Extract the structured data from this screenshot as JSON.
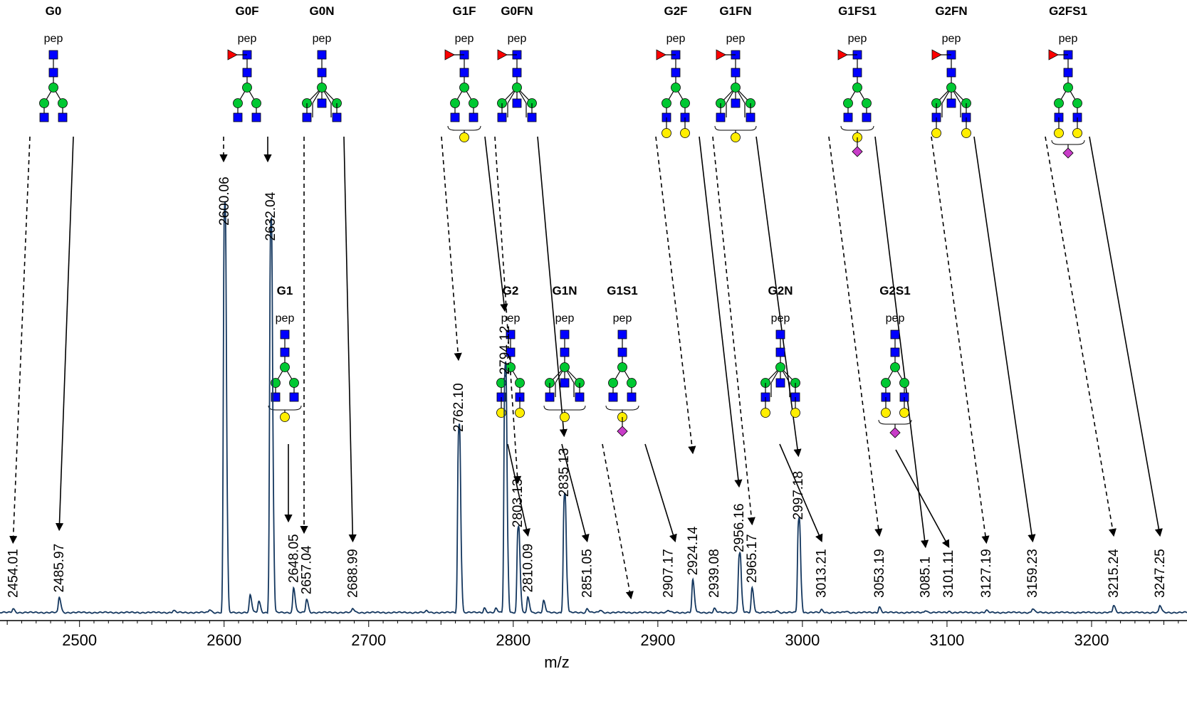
{
  "chart_data": {
    "type": "line",
    "xlabel": "m/z",
    "xlim": [
      2445,
      3266
    ],
    "x_ticks": [
      2500,
      2600,
      2700,
      2800,
      2900,
      3000,
      3100,
      3200
    ],
    "ylim": [
      0,
      100
    ],
    "series_color": "#14375f",
    "peaks": [
      {
        "x": 2454.01,
        "y": 1.0,
        "label": "2454.01"
      },
      {
        "x": 2485.97,
        "y": 4.0,
        "label": "2485.97"
      },
      {
        "x": 2600.06,
        "y": 100,
        "label": "2600.06"
      },
      {
        "x": 2632.04,
        "y": 96,
        "label": "2632.04"
      },
      {
        "x": 2648.05,
        "y": 6.5,
        "label": "2648.05"
      },
      {
        "x": 2657.04,
        "y": 3.5,
        "label": "2657.04"
      },
      {
        "x": 2688.99,
        "y": 1.0,
        "label": "2688.99"
      },
      {
        "x": 2762.1,
        "y": 46,
        "label": "2762.10"
      },
      {
        "x": 2794.12,
        "y": 61,
        "label": "2794.12"
      },
      {
        "x": 2803.13,
        "y": 21,
        "label": "2803.13"
      },
      {
        "x": 2810.09,
        "y": 4.0,
        "label": "2810.09"
      },
      {
        "x": 2835.13,
        "y": 29,
        "label": "2835.13"
      },
      {
        "x": 2851.05,
        "y": 1.0,
        "label": "2851.05"
      },
      {
        "x": 2907.17,
        "y": 0.5,
        "label": "2907.17"
      },
      {
        "x": 2924.14,
        "y": 8.5,
        "label": "2924.14"
      },
      {
        "x": 2939.08,
        "y": 1.0,
        "label": "2939.08"
      },
      {
        "x": 2956.16,
        "y": 14.5,
        "label": "2956.16"
      },
      {
        "x": 2965.17,
        "y": 6.5,
        "label": "2965.17"
      },
      {
        "x": 2997.18,
        "y": 23,
        "label": "2997.18"
      },
      {
        "x": 3013.21,
        "y": 0.7,
        "label": "3013.21"
      },
      {
        "x": 3053.19,
        "y": 1.5,
        "label": "3053.19"
      },
      {
        "x": 3085.1,
        "y": 0.6,
        "label": "3085.1"
      },
      {
        "x": 3101.11,
        "y": 0.3,
        "label": "3101.11"
      },
      {
        "x": 3127.19,
        "y": 0.5,
        "label": "3127.19"
      },
      {
        "x": 3159.23,
        "y": 1.0,
        "label": "3159.23"
      },
      {
        "x": 3215.24,
        "y": 1.8,
        "label": "3215.24"
      },
      {
        "x": 3247.25,
        "y": 1.8,
        "label": "3247.25"
      }
    ],
    "minor_peaks": [
      {
        "x": 2565,
        "y": 0.5
      },
      {
        "x": 2590,
        "y": 0.8
      },
      {
        "x": 2618,
        "y": 4.5
      },
      {
        "x": 2624,
        "y": 3.0
      },
      {
        "x": 2740,
        "y": 0.4
      },
      {
        "x": 2780,
        "y": 1.2
      },
      {
        "x": 2788,
        "y": 1.0
      },
      {
        "x": 2821,
        "y": 3.0
      },
      {
        "x": 2860,
        "y": 0.6
      },
      {
        "x": 2982,
        "y": 0.6
      },
      {
        "x": 3030,
        "y": 0.3
      }
    ],
    "glycans": [
      {
        "name": "G0",
        "arrows": [
          {
            "x": 2454.01,
            "style": "dashed"
          },
          {
            "x": 2485.97,
            "style": "solid"
          }
        ],
        "fuc": false,
        "bisect": false,
        "gal": "none",
        "sia": "none"
      },
      {
        "name": "G0F",
        "arrows": [
          {
            "x": 2600.06,
            "style": "dashed"
          },
          {
            "x": 2632.04,
            "style": "solid"
          }
        ],
        "fuc": true,
        "bisect": false,
        "gal": "none",
        "sia": "none"
      },
      {
        "name": "G0N",
        "arrows": [
          {
            "x": 2657.04,
            "style": "dashed"
          },
          {
            "x": 2688.99,
            "style": "solid"
          }
        ],
        "fuc": false,
        "bisect": true,
        "gal": "none",
        "sia": "none"
      },
      {
        "name": "G1F",
        "arrows": [
          {
            "x": 2762.1,
            "style": "dashed"
          },
          {
            "x": 2794.12,
            "style": "solid"
          }
        ],
        "fuc": true,
        "bisect": false,
        "gal": "one",
        "sia": "none"
      },
      {
        "name": "G0FN",
        "arrows": [
          {
            "x": 2803.13,
            "style": "dashed"
          },
          {
            "x": 2835.13,
            "style": "solid"
          }
        ],
        "fuc": true,
        "bisect": true,
        "gal": "none",
        "sia": "none"
      },
      {
        "name": "G2F",
        "arrows": [
          {
            "x": 2924.14,
            "style": "dashed"
          },
          {
            "x": 2956.16,
            "style": "solid"
          }
        ],
        "fuc": true,
        "bisect": false,
        "gal": "two",
        "sia": "none"
      },
      {
        "name": "G1FN",
        "arrows": [
          {
            "x": 2965.17,
            "style": "dashed"
          },
          {
            "x": 2997.18,
            "style": "solid"
          }
        ],
        "fuc": true,
        "bisect": true,
        "gal": "one",
        "sia": "none"
      },
      {
        "name": "G1FS1",
        "arrows": [
          {
            "x": 3053.19,
            "style": "dashed"
          },
          {
            "x": 3085.1,
            "style": "solid"
          }
        ],
        "fuc": true,
        "bisect": false,
        "gal": "one",
        "sia": "one"
      },
      {
        "name": "G2FN",
        "arrows": [
          {
            "x": 3127.19,
            "style": "dashed"
          },
          {
            "x": 3159.23,
            "style": "solid"
          }
        ],
        "fuc": true,
        "bisect": true,
        "gal": "two",
        "sia": "none"
      },
      {
        "name": "G2FS1",
        "arrows": [
          {
            "x": 3215.24,
            "style": "dashed"
          },
          {
            "x": 3247.25,
            "style": "solid"
          }
        ],
        "fuc": true,
        "bisect": false,
        "gal": "two",
        "sia": "one"
      },
      {
        "name": "G1",
        "arrows": [
          {
            "x": 2648.05,
            "style": "solid"
          }
        ],
        "fuc": false,
        "bisect": false,
        "gal": "one",
        "sia": "none"
      },
      {
        "name": "G2",
        "arrows": [
          {
            "x": 2810.09,
            "style": "solid"
          }
        ],
        "fuc": false,
        "bisect": false,
        "gal": "two",
        "sia": "none"
      },
      {
        "name": "G1N",
        "arrows": [
          {
            "x": 2851.05,
            "style": "solid"
          }
        ],
        "fuc": false,
        "bisect": true,
        "gal": "one",
        "sia": "none"
      },
      {
        "name": "G1S1",
        "arrows": [
          {
            "x": 2907.17,
            "style": "dashed"
          },
          {
            "x": 2939.08,
            "style": "solid"
          }
        ],
        "fuc": false,
        "bisect": false,
        "gal": "one",
        "sia": "one"
      },
      {
        "name": "G2N",
        "arrows": [
          {
            "x": 3013.21,
            "style": "solid"
          }
        ],
        "fuc": false,
        "bisect": true,
        "gal": "two",
        "sia": "none"
      },
      {
        "name": "G2S1",
        "arrows": [
          {
            "x": 3101.11,
            "style": "solid"
          }
        ],
        "fuc": false,
        "bisect": false,
        "gal": "two",
        "sia": "one"
      }
    ],
    "pep_label": "pep",
    "symbol_colors": {
      "glcnac": "#0000ff",
      "man": "#00c832",
      "gal": "#ffee00",
      "fuc": "#ff0000",
      "neuac": "#c83cc8"
    }
  }
}
